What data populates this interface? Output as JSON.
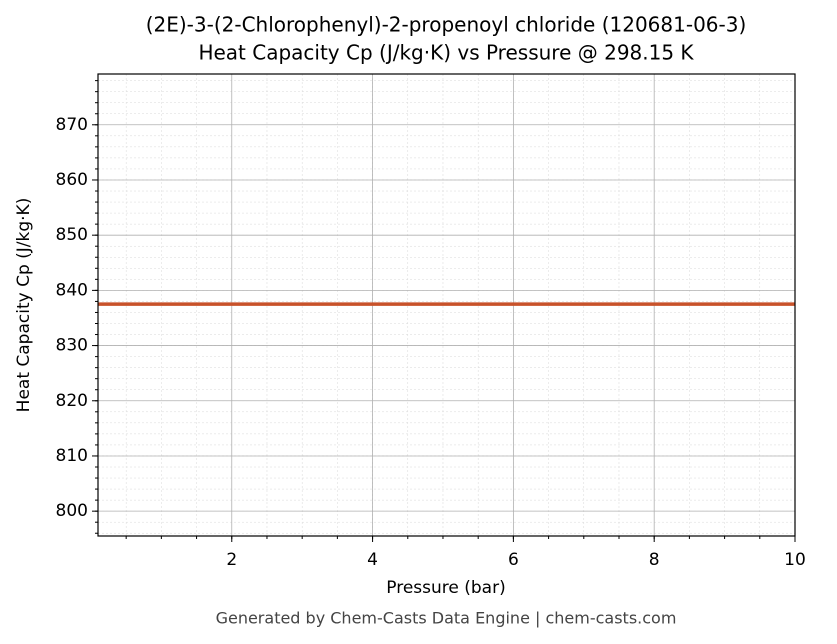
{
  "chart_data": {
    "type": "line",
    "title": "(2E)-3-(2-Chlorophenyl)-2-propenoyl chloride (120681-06-3)",
    "subtitle": "Heat Capacity Cp (J/kg·K) vs Pressure @ 298.15 K",
    "x_label": "Pressure (bar)",
    "y_label": "Heat Capacity Cp (J/kg·K)",
    "footer": "Generated by Chem-Casts Data Engine | chem-casts.com",
    "x": [
      0.1,
      10
    ],
    "series": [
      {
        "name": "Heat Capacity Cp",
        "color": "#c8522a",
        "values": [
          837.5,
          837.5
        ]
      }
    ],
    "xlim": [
      0.1,
      10
    ],
    "xticks": [
      2,
      4,
      6,
      8,
      10
    ],
    "ylim": [
      795.5,
      879.2
    ],
    "yticks": [
      800,
      810,
      820,
      830,
      840,
      850,
      860,
      870
    ],
    "grid": true,
    "minor_grid": true
  }
}
